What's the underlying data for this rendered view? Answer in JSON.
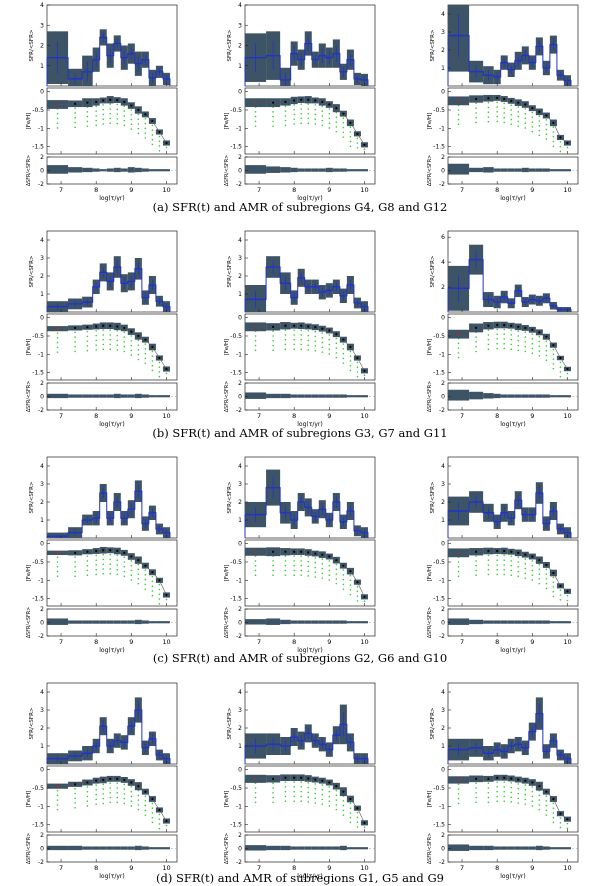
{
  "chart_data": {
    "type": "grid of histogram panels",
    "shared": {
      "xlabel": "log(τ/yr)",
      "x_ticks": [
        7,
        8,
        9,
        10
      ],
      "x_range": [
        6.6,
        10.3
      ],
      "sfr_ylabel": "SFR/<SFR>",
      "amr_ylabel": "[Fe/H]",
      "amr_ylim": [
        -1.7,
        0.1
      ],
      "amr_ticks": [
        "0",
        "-0.5",
        "-1",
        "-1.5"
      ],
      "resid_ylabel": "ΔSFR/<SFR>",
      "resid_ylim": [
        -2,
        2
      ],
      "resid_ticks": [
        "2",
        "0",
        "-2"
      ],
      "bin_edges": [
        6.6,
        7.2,
        7.6,
        7.9,
        8.1,
        8.3,
        8.5,
        8.7,
        8.9,
        9.1,
        9.3,
        9.5,
        9.7,
        9.9,
        10.1
      ]
    },
    "rows": [
      {
        "caption": "(a) SFR(t) and AMR of subregions G4, G8 and G12",
        "panels": [
          {
            "ylim": [
              0,
              4
            ],
            "yticks": [
              "1",
              "2",
              "3",
              "4"
            ],
            "sfr": [
              1.4,
              0.35,
              0.7,
              1.3,
              2.4,
              1.5,
              2.1,
              1.4,
              1.6,
              1.1,
              1.3,
              0.4,
              0.7,
              0.35
            ],
            "band": [
              1.3,
              0.5,
              0.8,
              0.6,
              0.4,
              0.6,
              0.4,
              0.6,
              0.5,
              0.6,
              0.4,
              0.4,
              0.3,
              0.3
            ],
            "amr": [
              -0.35,
              -0.33,
              -0.3,
              -0.28,
              -0.24,
              -0.22,
              -0.23,
              -0.28,
              -0.38,
              -0.5,
              -0.62,
              -0.8,
              -1.1,
              -1.4
            ],
            "resid": [
              0.8,
              0.5,
              0.4,
              0.3,
              0.2,
              0.3,
              0.4,
              0.3,
              0.5,
              0.4,
              0.3,
              0.2,
              0.2,
              0.2
            ]
          },
          {
            "ylim": [
              0,
              4
            ],
            "yticks": [
              "1",
              "2",
              "3",
              "4"
            ],
            "sfr": [
              1.4,
              1.5,
              0.3,
              1.6,
              1.3,
              2.1,
              1.3,
              1.5,
              1.4,
              1.6,
              0.7,
              1.3,
              0.35,
              0.3
            ],
            "band": [
              1.2,
              1.2,
              0.6,
              0.6,
              0.5,
              0.6,
              0.4,
              0.6,
              0.5,
              0.7,
              0.4,
              0.5,
              0.3,
              0.3
            ],
            "amr": [
              -0.3,
              -0.3,
              -0.28,
              -0.24,
              -0.22,
              -0.22,
              -0.24,
              -0.28,
              -0.35,
              -0.45,
              -0.6,
              -0.85,
              -1.15,
              -1.45
            ],
            "resid": [
              0.8,
              0.6,
              0.5,
              0.4,
              0.3,
              0.3,
              0.3,
              0.3,
              0.4,
              0.3,
              0.3,
              0.2,
              0.2,
              0.2
            ]
          },
          {
            "ylim": [
              0,
              4.5
            ],
            "yticks": [
              "1",
              "2",
              "3",
              "4"
            ],
            "sfr": [
              2.8,
              0.8,
              0.6,
              0.5,
              1.3,
              0.9,
              1.4,
              1.7,
              1.3,
              2.2,
              1.0,
              2.3,
              0.6,
              0.3
            ],
            "band": [
              2.0,
              0.6,
              0.5,
              0.4,
              0.4,
              0.4,
              0.5,
              0.5,
              0.4,
              0.5,
              0.4,
              0.5,
              0.3,
              0.3
            ],
            "amr": [
              -0.25,
              -0.2,
              -0.18,
              -0.17,
              -0.2,
              -0.25,
              -0.3,
              -0.35,
              -0.45,
              -0.55,
              -0.65,
              -0.85,
              -1.25,
              -1.4
            ],
            "resid": [
              1.0,
              0.4,
              0.5,
              0.3,
              0.3,
              0.3,
              0.3,
              0.4,
              0.3,
              0.3,
              0.3,
              0.2,
              0.2,
              0.2
            ]
          }
        ]
      },
      {
        "caption": "(b) SFR(t) and AMR of subregions G3, G7 and G11",
        "panels": [
          {
            "ylim": [
              0,
              4.5
            ],
            "yticks": [
              "1",
              "2",
              "3",
              "4"
            ],
            "sfr": [
              0.3,
              0.45,
              0.55,
              1.4,
              2.2,
              1.7,
              2.5,
              1.6,
              1.7,
              2.4,
              0.8,
              1.5,
              0.6,
              0.3
            ],
            "band": [
              0.3,
              0.3,
              0.3,
              0.4,
              0.5,
              0.5,
              0.6,
              0.5,
              0.5,
              0.6,
              0.4,
              0.5,
              0.3,
              0.3
            ],
            "amr": [
              -0.3,
              -0.28,
              -0.26,
              -0.24,
              -0.22,
              -0.22,
              -0.24,
              -0.28,
              -0.38,
              -0.5,
              -0.6,
              -0.8,
              -1.1,
              -1.4
            ],
            "resid": [
              0.4,
              0.3,
              0.3,
              0.3,
              0.3,
              0.3,
              0.4,
              0.3,
              0.3,
              0.4,
              0.3,
              0.2,
              0.2,
              0.2
            ]
          },
          {
            "ylim": [
              0,
              4.5
            ],
            "yticks": [
              "1",
              "2",
              "3",
              "4"
            ],
            "sfr": [
              0.7,
              2.5,
              1.6,
              0.8,
              1.9,
              1.4,
              1.4,
              1.1,
              1.2,
              1.4,
              0.9,
              1.5,
              0.5,
              0.3
            ],
            "band": [
              0.8,
              0.6,
              0.6,
              0.4,
              0.5,
              0.4,
              0.4,
              0.4,
              0.4,
              0.4,
              0.4,
              0.5,
              0.3,
              0.3
            ],
            "amr": [
              -0.25,
              -0.25,
              -0.22,
              -0.22,
              -0.22,
              -0.24,
              -0.26,
              -0.3,
              -0.35,
              -0.45,
              -0.6,
              -0.8,
              -1.1,
              -1.45
            ],
            "resid": [
              0.6,
              0.4,
              0.4,
              0.3,
              0.3,
              0.3,
              0.3,
              0.3,
              0.3,
              0.3,
              0.3,
              0.2,
              0.2,
              0.2
            ]
          },
          {
            "ylim": [
              0,
              6.5
            ],
            "yticks": [
              "2",
              "4",
              "6"
            ],
            "sfr": [
              1.9,
              4.2,
              1.0,
              0.8,
              1.2,
              0.7,
              1.7,
              0.8,
              1.0,
              0.9,
              1.1,
              0.5,
              0.2,
              0.2
            ],
            "band": [
              1.8,
              1.2,
              0.6,
              0.5,
              0.5,
              0.4,
              0.5,
              0.4,
              0.4,
              0.4,
              0.4,
              0.3,
              0.2,
              0.2
            ],
            "amr": [
              -0.45,
              -0.28,
              -0.22,
              -0.2,
              -0.2,
              -0.22,
              -0.25,
              -0.28,
              -0.33,
              -0.4,
              -0.52,
              -0.75,
              -1.1,
              -1.4
            ],
            "resid": [
              1.0,
              0.7,
              0.5,
              0.4,
              0.3,
              0.3,
              0.3,
              0.3,
              0.3,
              0.3,
              0.3,
              0.2,
              0.2,
              0.2
            ]
          }
        ]
      },
      {
        "caption": "(c) SFR(t) and AMR of subregions G2, G6 and G10",
        "panels": [
          {
            "ylim": [
              0,
              4.5
            ],
            "yticks": [
              "1",
              "2",
              "3",
              "4"
            ],
            "sfr": [
              0.1,
              0.3,
              1.0,
              1.1,
              2.5,
              1.1,
              2.0,
              1.1,
              1.6,
              2.6,
              0.8,
              1.4,
              0.5,
              0.3
            ],
            "band": [
              0.2,
              0.3,
              0.3,
              0.4,
              0.5,
              0.4,
              0.5,
              0.4,
              0.5,
              0.6,
              0.4,
              0.4,
              0.3,
              0.3
            ],
            "amr": [
              -0.25,
              -0.25,
              -0.22,
              -0.2,
              -0.18,
              -0.18,
              -0.2,
              -0.25,
              -0.35,
              -0.45,
              -0.6,
              -0.78,
              -1.0,
              -1.4
            ],
            "resid": [
              0.6,
              0.3,
              0.3,
              0.3,
              0.3,
              0.3,
              0.3,
              0.3,
              0.3,
              0.4,
              0.3,
              0.2,
              0.2,
              0.2
            ]
          },
          {
            "ylim": [
              0,
              4.5
            ],
            "yticks": [
              "1",
              "2",
              "3",
              "4"
            ],
            "sfr": [
              1.3,
              2.8,
              1.4,
              1.0,
              2.0,
              1.7,
              1.2,
              1.6,
              1.0,
              2.0,
              0.9,
              1.5,
              0.4,
              0.3
            ],
            "band": [
              0.7,
              1.0,
              0.6,
              0.5,
              0.5,
              0.5,
              0.4,
              0.5,
              0.4,
              0.5,
              0.4,
              0.5,
              0.3,
              0.3
            ],
            "amr": [
              -0.22,
              -0.22,
              -0.22,
              -0.22,
              -0.22,
              -0.24,
              -0.27,
              -0.3,
              -0.35,
              -0.45,
              -0.6,
              -0.75,
              -1.05,
              -1.45
            ],
            "resid": [
              0.5,
              0.6,
              0.4,
              0.3,
              0.3,
              0.3,
              0.3,
              0.3,
              0.3,
              0.3,
              0.3,
              0.2,
              0.2,
              0.2
            ]
          },
          {
            "ylim": [
              0,
              4.5
            ],
            "yticks": [
              "1",
              "2",
              "3",
              "4"
            ],
            "sfr": [
              1.5,
              2.0,
              1.4,
              0.9,
              1.4,
              1.1,
              2.1,
              1.3,
              1.3,
              2.5,
              0.8,
              1.5,
              0.5,
              0.3
            ],
            "band": [
              0.8,
              0.6,
              0.5,
              0.4,
              0.5,
              0.4,
              0.5,
              0.4,
              0.4,
              0.6,
              0.4,
              0.5,
              0.3,
              0.3
            ],
            "amr": [
              -0.25,
              -0.22,
              -0.2,
              -0.2,
              -0.2,
              -0.22,
              -0.25,
              -0.3,
              -0.35,
              -0.45,
              -0.58,
              -0.8,
              -1.15,
              -1.3
            ],
            "resid": [
              0.6,
              0.4,
              0.3,
              0.3,
              0.3,
              0.3,
              0.3,
              0.3,
              0.3,
              0.3,
              0.3,
              0.2,
              0.2,
              0.2
            ]
          }
        ]
      },
      {
        "caption": "(d) SFR(t) and AMR of subregions G1, G5 and G9",
        "panels": [
          {
            "ylim": [
              0,
              4.5
            ],
            "yticks": [
              "1",
              "2",
              "3",
              "4"
            ],
            "sfr": [
              0.3,
              0.45,
              0.6,
              1.0,
              2.1,
              1.0,
              1.3,
              1.2,
              2.1,
              3.0,
              0.9,
              1.4,
              0.5,
              0.3
            ],
            "band": [
              0.3,
              0.3,
              0.4,
              0.4,
              0.5,
              0.4,
              0.4,
              0.4,
              0.5,
              0.7,
              0.4,
              0.4,
              0.3,
              0.3
            ],
            "amr": [
              -0.45,
              -0.4,
              -0.35,
              -0.3,
              -0.28,
              -0.25,
              -0.25,
              -0.28,
              -0.35,
              -0.45,
              -0.6,
              -0.8,
              -1.1,
              -1.4
            ],
            "resid": [
              0.4,
              0.4,
              0.3,
              0.3,
              0.3,
              0.3,
              0.3,
              0.3,
              0.3,
              0.4,
              0.3,
              0.2,
              0.2,
              0.2
            ]
          },
          {
            "ylim": [
              0,
              4.5
            ],
            "yticks": [
              "1",
              "2",
              "3",
              "4"
            ],
            "sfr": [
              1.0,
              1.1,
              1.0,
              1.5,
              1.3,
              1.7,
              1.3,
              1.1,
              0.8,
              1.6,
              2.2,
              1.2,
              0.3,
              0.3
            ],
            "band": [
              0.7,
              0.6,
              0.5,
              0.5,
              0.5,
              0.5,
              0.4,
              0.4,
              0.4,
              0.5,
              1.1,
              0.5,
              0.3,
              0.3
            ],
            "amr": [
              -0.25,
              -0.25,
              -0.22,
              -0.22,
              -0.22,
              -0.24,
              -0.27,
              -0.3,
              -0.35,
              -0.45,
              -0.6,
              -0.8,
              -1.05,
              -1.45
            ],
            "resid": [
              0.5,
              0.4,
              0.4,
              0.3,
              0.3,
              0.3,
              0.3,
              0.3,
              0.3,
              0.3,
              0.4,
              0.2,
              0.2,
              0.2
            ]
          },
          {
            "ylim": [
              0,
              4.5
            ],
            "yticks": [
              "1",
              "2",
              "3",
              "4"
            ],
            "sfr": [
              0.8,
              0.9,
              0.6,
              0.8,
              0.7,
              1.0,
              1.1,
              0.9,
              1.8,
              2.8,
              0.7,
              1.3,
              0.5,
              0.3
            ],
            "band": [
              0.6,
              0.5,
              0.4,
              0.4,
              0.4,
              0.4,
              0.4,
              0.4,
              0.5,
              0.9,
              0.4,
              0.4,
              0.3,
              0.3
            ],
            "amr": [
              -0.28,
              -0.25,
              -0.25,
              -0.22,
              -0.22,
              -0.24,
              -0.27,
              -0.3,
              -0.35,
              -0.45,
              -0.6,
              -0.8,
              -1.2,
              -1.35
            ],
            "resid": [
              0.6,
              0.4,
              0.4,
              0.3,
              0.3,
              0.3,
              0.3,
              0.3,
              0.3,
              0.4,
              0.3,
              0.2,
              0.2,
              0.2
            ]
          }
        ]
      }
    ],
    "colors": {
      "band": "#3d5366",
      "model": "#2233cc",
      "grid": "#33cc33",
      "point": "#cc2222",
      "axis": "#222222"
    }
  }
}
